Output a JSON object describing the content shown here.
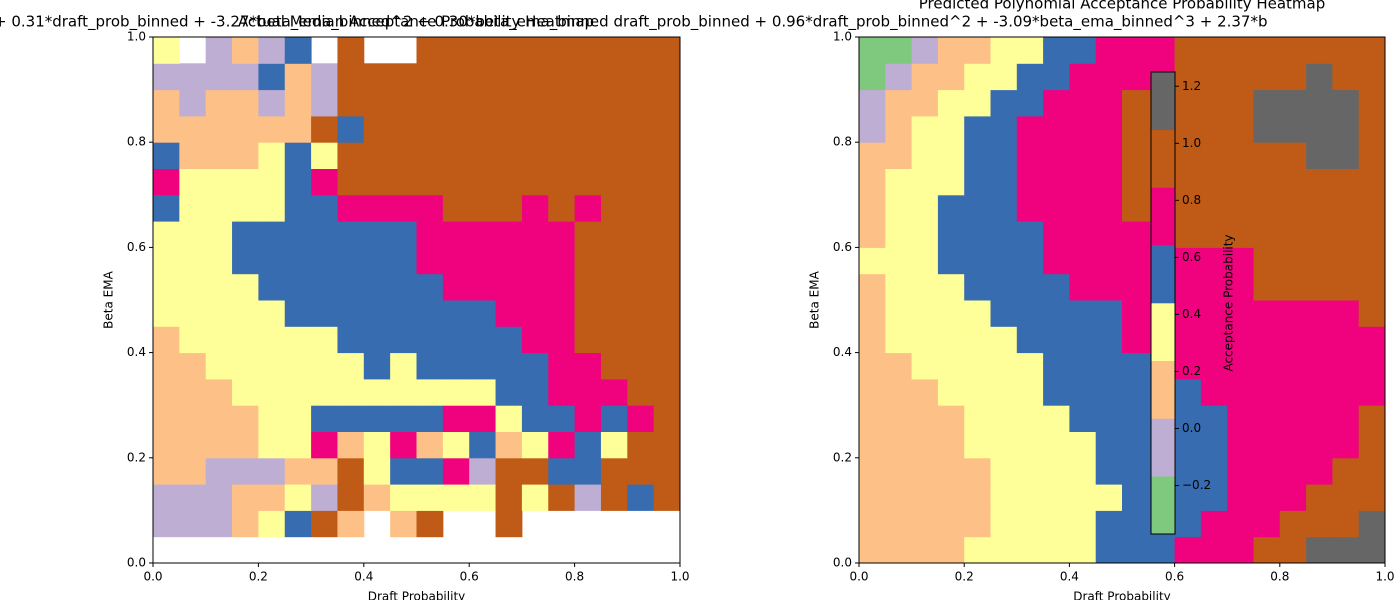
{
  "chart_data": [
    {
      "type": "heatmap",
      "title": "Actual Median Acceptance Probability Heatmap",
      "xlabel": "Draft Probability",
      "ylabel": "Beta EMA",
      "xlim": [
        0,
        1
      ],
      "ylim": [
        0,
        1
      ],
      "xticks": [
        {
          "value": 0,
          "label": "0.0"
        },
        0.2,
        0.4,
        0.6,
        0.8,
        {
          "value": 1,
          "label": "1.0"
        }
      ],
      "yticks": [
        {
          "value": 0,
          "label": "0.0"
        },
        0.2,
        0.4,
        0.6,
        0.8,
        {
          "value": 1,
          "label": "1.0"
        }
      ],
      "colors": [
        "#7fc97f",
        "#beaed4",
        "#fdc086",
        "#ffff99",
        "#386cb0",
        "#f0027f",
        "#bf5b17",
        "#666666"
      ],
      "clim": [
        -0.37,
        1.25
      ],
      "z": [
        [
          null,
          null,
          null,
          null,
          null,
          null,
          null,
          null,
          null,
          null,
          null,
          null,
          null,
          null,
          null,
          null,
          null,
          null,
          null,
          null
        ],
        [
          -0.07,
          -0.07,
          -0.07,
          0.15,
          0.35,
          0.55,
          0.96,
          0.15,
          null,
          0.15,
          0.96,
          null,
          null,
          0.96,
          null,
          null,
          null,
          null,
          null,
          null
        ],
        [
          -0.07,
          -0.07,
          -0.07,
          0.15,
          0.15,
          0.35,
          -0.07,
          0.96,
          0.15,
          0.35,
          0.35,
          0.35,
          0.35,
          0.96,
          0.35,
          0.96,
          -0.07,
          0.96,
          0.55,
          0.96
        ],
        [
          0.15,
          0.15,
          -0.07,
          -0.07,
          -0.07,
          0.15,
          0.15,
          0.96,
          0.35,
          0.55,
          0.55,
          0.76,
          -0.07,
          0.96,
          0.96,
          0.55,
          0.55,
          0.96,
          0.96,
          0.96
        ],
        [
          0.15,
          0.15,
          0.15,
          0.15,
          0.35,
          0.35,
          0.76,
          0.15,
          0.35,
          0.76,
          0.15,
          0.35,
          0.55,
          0.15,
          0.35,
          0.76,
          0.55,
          0.35,
          0.96,
          0.96
        ],
        [
          0.15,
          0.15,
          0.15,
          0.15,
          0.35,
          0.35,
          0.55,
          0.55,
          0.55,
          0.55,
          0.55,
          0.76,
          0.76,
          0.35,
          0.55,
          0.55,
          0.76,
          0.55,
          0.76,
          0.96
        ],
        [
          0.15,
          0.15,
          0.15,
          0.35,
          0.35,
          0.35,
          0.35,
          0.35,
          0.35,
          0.35,
          0.35,
          0.35,
          0.35,
          0.55,
          0.55,
          0.76,
          0.76,
          0.76,
          0.96,
          0.96
        ],
        [
          0.15,
          0.15,
          0.35,
          0.35,
          0.35,
          0.35,
          0.35,
          0.35,
          0.55,
          0.35,
          0.55,
          0.55,
          0.55,
          0.55,
          0.55,
          0.76,
          0.76,
          0.96,
          0.96,
          0.96
        ],
        [
          0.15,
          0.35,
          0.35,
          0.35,
          0.35,
          0.35,
          0.35,
          0.55,
          0.55,
          0.55,
          0.55,
          0.55,
          0.55,
          0.55,
          0.76,
          0.76,
          0.96,
          0.96,
          0.96,
          0.96
        ],
        [
          0.35,
          0.35,
          0.35,
          0.35,
          0.35,
          0.55,
          0.55,
          0.55,
          0.55,
          0.55,
          0.55,
          0.55,
          0.55,
          0.76,
          0.76,
          0.76,
          0.96,
          0.96,
          0.96,
          0.96
        ],
        [
          0.35,
          0.35,
          0.35,
          0.35,
          0.55,
          0.55,
          0.55,
          0.55,
          0.55,
          0.55,
          0.55,
          0.76,
          0.76,
          0.76,
          0.76,
          0.76,
          0.96,
          0.96,
          0.96,
          0.96
        ],
        [
          0.35,
          0.35,
          0.35,
          0.55,
          0.55,
          0.55,
          0.55,
          0.55,
          0.55,
          0.55,
          0.76,
          0.76,
          0.76,
          0.76,
          0.76,
          0.76,
          0.96,
          0.96,
          0.96,
          0.96
        ],
        [
          0.35,
          0.35,
          0.35,
          0.55,
          0.55,
          0.55,
          0.55,
          0.55,
          0.55,
          0.55,
          0.76,
          0.76,
          0.76,
          0.76,
          0.76,
          0.76,
          0.96,
          0.96,
          0.96,
          0.96
        ],
        [
          0.55,
          0.35,
          0.35,
          0.35,
          0.35,
          0.55,
          0.55,
          0.76,
          0.76,
          0.76,
          0.76,
          0.96,
          0.96,
          0.96,
          0.76,
          0.96,
          0.76,
          0.96,
          0.96,
          0.96
        ],
        [
          0.76,
          0.35,
          0.35,
          0.35,
          0.35,
          0.55,
          0.76,
          0.96,
          0.96,
          0.96,
          0.96,
          0.96,
          0.96,
          0.96,
          0.96,
          0.96,
          0.96,
          0.96,
          0.96,
          0.96
        ],
        [
          0.55,
          0.15,
          0.15,
          0.15,
          0.35,
          0.55,
          0.35,
          0.96,
          0.96,
          0.96,
          0.96,
          0.96,
          0.96,
          0.96,
          0.96,
          0.96,
          0.96,
          0.96,
          0.96,
          0.96
        ],
        [
          0.15,
          0.15,
          0.15,
          0.15,
          0.15,
          0.15,
          0.96,
          0.55,
          0.96,
          0.96,
          0.96,
          0.96,
          0.96,
          0.96,
          0.96,
          0.96,
          0.96,
          0.96,
          0.96,
          0.96
        ],
        [
          0.15,
          -0.07,
          0.15,
          0.15,
          -0.07,
          0.15,
          -0.07,
          0.96,
          0.96,
          0.96,
          0.96,
          0.96,
          0.96,
          0.96,
          0.96,
          0.96,
          0.96,
          0.96,
          0.96,
          0.96
        ],
        [
          -0.07,
          -0.07,
          -0.07,
          -0.07,
          0.55,
          0.15,
          -0.07,
          0.96,
          0.96,
          0.96,
          0.96,
          0.96,
          0.96,
          0.96,
          0.96,
          0.96,
          0.96,
          0.96,
          0.96,
          0.96
        ],
        [
          0.35,
          null,
          -0.07,
          0.15,
          -0.07,
          0.55,
          null,
          0.96,
          null,
          null,
          0.96,
          0.96,
          0.96,
          0.96,
          0.96,
          0.96,
          0.96,
          0.96,
          0.96,
          0.96
        ]
      ]
    },
    {
      "type": "heatmap",
      "title": "Predicted Polynomial Acceptance Probability Heatmap",
      "subtitle": "+ 0.31*draft_prob_binned + -3.27*beta_ema_binned^2 + 0.30*beta_ema_binned draft_prob_binned + 0.96*draft_prob_binned^2 + -3.09*beta_ema_binned^3 + 2.37*b",
      "xlabel": "Draft Probability",
      "ylabel": "Beta EMA",
      "xlim": [
        0,
        1
      ],
      "ylim": [
        0,
        1
      ],
      "xticks": [
        {
          "value": 0,
          "label": "0.0"
        },
        0.2,
        0.4,
        0.6,
        0.8,
        {
          "value": 1,
          "label": "1.0"
        }
      ],
      "yticks": [
        {
          "value": 0,
          "label": "0.0"
        },
        0.2,
        0.4,
        0.6,
        0.8,
        {
          "value": 1,
          "label": "1.0"
        }
      ],
      "colors": [
        "#7fc97f",
        "#beaed4",
        "#fdc086",
        "#ffff99",
        "#386cb0",
        "#f0027f",
        "#bf5b17",
        "#666666"
      ],
      "clim": [
        -0.37,
        1.25
      ],
      "colorbar": {
        "label": "Acceptance Probability",
        "ticks": [
          {
            "value": -0.2,
            "label": "−0.2"
          },
          {
            "value": 0,
            "label": "0.0"
          },
          0.2,
          0.4,
          0.6,
          0.8,
          {
            "value": 1,
            "label": "1.0"
          },
          1.2
        ]
      },
      "z": [
        [
          0.15,
          0.15,
          0.15,
          0.15,
          0.35,
          0.35,
          0.35,
          0.35,
          0.35,
          0.55,
          0.55,
          0.55,
          0.76,
          0.76,
          0.76,
          0.96,
          0.96,
          1.16,
          1.16,
          1.16
        ],
        [
          0.15,
          0.15,
          0.15,
          0.15,
          0.15,
          0.35,
          0.35,
          0.35,
          0.35,
          0.55,
          0.55,
          0.55,
          0.55,
          0.76,
          0.76,
          0.76,
          0.96,
          0.96,
          0.96,
          1.16
        ],
        [
          0.15,
          0.15,
          0.15,
          0.15,
          0.15,
          0.35,
          0.35,
          0.35,
          0.35,
          0.35,
          0.55,
          0.55,
          0.55,
          0.55,
          0.76,
          0.76,
          0.76,
          0.96,
          0.96,
          0.96
        ],
        [
          0.15,
          0.15,
          0.15,
          0.15,
          0.15,
          0.35,
          0.35,
          0.35,
          0.35,
          0.55,
          0.55,
          0.55,
          0.55,
          0.55,
          0.76,
          0.76,
          0.76,
          0.76,
          0.96,
          0.96
        ],
        [
          0.15,
          0.15,
          0.15,
          0.15,
          0.35,
          0.35,
          0.35,
          0.35,
          0.35,
          0.55,
          0.55,
          0.55,
          0.55,
          0.55,
          0.76,
          0.76,
          0.76,
          0.76,
          0.76,
          0.96
        ],
        [
          0.15,
          0.15,
          0.15,
          0.15,
          0.35,
          0.35,
          0.35,
          0.35,
          0.55,
          0.55,
          0.55,
          0.55,
          0.55,
          0.55,
          0.76,
          0.76,
          0.76,
          0.76,
          0.76,
          0.96
        ],
        [
          0.15,
          0.15,
          0.15,
          0.35,
          0.35,
          0.35,
          0.35,
          0.55,
          0.55,
          0.55,
          0.55,
          0.55,
          0.55,
          0.76,
          0.76,
          0.76,
          0.76,
          0.76,
          0.76,
          0.76
        ],
        [
          0.15,
          0.15,
          0.35,
          0.35,
          0.35,
          0.35,
          0.35,
          0.55,
          0.55,
          0.55,
          0.55,
          0.55,
          0.76,
          0.76,
          0.76,
          0.76,
          0.76,
          0.76,
          0.76,
          0.76
        ],
        [
          0.15,
          0.35,
          0.35,
          0.35,
          0.35,
          0.35,
          0.55,
          0.55,
          0.55,
          0.55,
          0.76,
          0.76,
          0.76,
          0.76,
          0.76,
          0.76,
          0.76,
          0.76,
          0.76,
          0.76
        ],
        [
          0.15,
          0.35,
          0.35,
          0.35,
          0.35,
          0.55,
          0.55,
          0.55,
          0.55,
          0.55,
          0.76,
          0.76,
          0.76,
          0.76,
          0.76,
          0.76,
          0.76,
          0.76,
          0.76,
          0.96
        ],
        [
          0.15,
          0.35,
          0.35,
          0.35,
          0.55,
          0.55,
          0.55,
          0.55,
          0.76,
          0.76,
          0.76,
          0.76,
          0.76,
          0.76,
          0.76,
          0.96,
          0.96,
          0.96,
          0.96,
          0.96
        ],
        [
          0.35,
          0.35,
          0.35,
          0.55,
          0.55,
          0.55,
          0.55,
          0.76,
          0.76,
          0.76,
          0.76,
          0.76,
          0.76,
          0.76,
          0.76,
          0.96,
          0.96,
          0.96,
          0.96,
          0.96
        ],
        [
          0.15,
          0.35,
          0.35,
          0.55,
          0.55,
          0.55,
          0.55,
          0.76,
          0.76,
          0.76,
          0.76,
          0.76,
          0.96,
          0.96,
          0.96,
          0.96,
          0.96,
          0.96,
          0.96,
          0.96
        ],
        [
          0.15,
          0.35,
          0.35,
          0.55,
          0.55,
          0.55,
          0.76,
          0.76,
          0.76,
          0.76,
          0.96,
          0.96,
          0.96,
          0.96,
          0.96,
          0.96,
          0.96,
          0.96,
          0.96,
          0.96
        ],
        [
          0.15,
          0.35,
          0.35,
          0.35,
          0.55,
          0.55,
          0.76,
          0.76,
          0.76,
          0.76,
          0.96,
          0.96,
          0.96,
          0.96,
          0.96,
          0.96,
          0.96,
          0.96,
          0.96,
          0.96
        ],
        [
          0.15,
          0.15,
          0.35,
          0.35,
          0.55,
          0.55,
          0.76,
          0.76,
          0.76,
          0.76,
          0.96,
          0.96,
          0.96,
          0.96,
          0.96,
          0.96,
          0.96,
          1.16,
          1.16,
          0.96
        ],
        [
          -0.07,
          0.15,
          0.35,
          0.35,
          0.55,
          0.55,
          0.76,
          0.76,
          0.76,
          0.76,
          0.96,
          0.96,
          0.96,
          0.96,
          0.96,
          1.16,
          1.16,
          1.16,
          1.16,
          0.96
        ],
        [
          -0.07,
          0.15,
          0.15,
          0.35,
          0.35,
          0.55,
          0.55,
          0.76,
          0.76,
          0.76,
          0.96,
          0.96,
          0.96,
          0.96,
          0.96,
          1.16,
          1.16,
          1.16,
          1.16,
          0.96
        ],
        [
          -0.27,
          -0.07,
          0.15,
          0.15,
          0.35,
          0.35,
          0.55,
          0.55,
          0.76,
          0.76,
          0.76,
          0.76,
          0.96,
          0.96,
          0.96,
          0.96,
          0.96,
          1.16,
          0.96,
          0.96
        ],
        [
          -0.27,
          -0.27,
          -0.07,
          0.15,
          0.15,
          0.35,
          0.35,
          0.55,
          0.55,
          0.76,
          0.76,
          0.76,
          0.96,
          0.96,
          0.96,
          0.96,
          0.96,
          0.96,
          0.96,
          0.96
        ]
      ]
    }
  ]
}
